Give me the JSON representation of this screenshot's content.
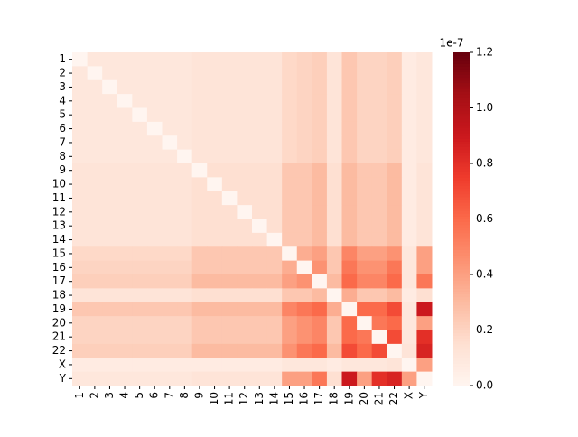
{
  "chart_data": {
    "type": "heatmap",
    "categories": [
      "1",
      "2",
      "3",
      "4",
      "5",
      "6",
      "7",
      "8",
      "9",
      "10",
      "11",
      "12",
      "13",
      "14",
      "15",
      "16",
      "17",
      "18",
      "19",
      "20",
      "21",
      "22",
      "X",
      "Y"
    ],
    "values": [
      [
        0,
        0.1,
        0.1,
        0.1,
        0.1,
        0.1,
        0.1,
        0.1,
        0.12,
        0.12,
        0.12,
        0.12,
        0.12,
        0.12,
        0.18,
        0.2,
        0.22,
        0.12,
        0.25,
        0.2,
        0.2,
        0.22,
        0.07,
        0.1
      ],
      [
        0.1,
        0,
        0.1,
        0.1,
        0.1,
        0.1,
        0.1,
        0.1,
        0.12,
        0.12,
        0.12,
        0.12,
        0.12,
        0.12,
        0.18,
        0.2,
        0.22,
        0.12,
        0.25,
        0.2,
        0.2,
        0.22,
        0.07,
        0.1
      ],
      [
        0.1,
        0.1,
        0,
        0.1,
        0.1,
        0.1,
        0.1,
        0.1,
        0.12,
        0.12,
        0.12,
        0.12,
        0.12,
        0.12,
        0.18,
        0.2,
        0.22,
        0.12,
        0.25,
        0.2,
        0.2,
        0.22,
        0.07,
        0.1
      ],
      [
        0.1,
        0.1,
        0.1,
        0,
        0.1,
        0.1,
        0.1,
        0.1,
        0.12,
        0.12,
        0.12,
        0.12,
        0.12,
        0.12,
        0.18,
        0.2,
        0.22,
        0.12,
        0.25,
        0.2,
        0.2,
        0.22,
        0.07,
        0.1
      ],
      [
        0.1,
        0.1,
        0.1,
        0.1,
        0,
        0.1,
        0.1,
        0.1,
        0.12,
        0.12,
        0.12,
        0.12,
        0.12,
        0.12,
        0.18,
        0.2,
        0.22,
        0.12,
        0.25,
        0.2,
        0.2,
        0.22,
        0.07,
        0.1
      ],
      [
        0.1,
        0.1,
        0.1,
        0.1,
        0.1,
        0,
        0.1,
        0.1,
        0.12,
        0.12,
        0.12,
        0.12,
        0.12,
        0.12,
        0.18,
        0.2,
        0.22,
        0.12,
        0.25,
        0.2,
        0.2,
        0.22,
        0.07,
        0.1
      ],
      [
        0.1,
        0.1,
        0.1,
        0.1,
        0.1,
        0.1,
        0,
        0.1,
        0.12,
        0.12,
        0.12,
        0.12,
        0.12,
        0.12,
        0.18,
        0.2,
        0.22,
        0.12,
        0.25,
        0.2,
        0.2,
        0.22,
        0.07,
        0.1
      ],
      [
        0.1,
        0.1,
        0.1,
        0.1,
        0.1,
        0.1,
        0.1,
        0,
        0.12,
        0.12,
        0.12,
        0.12,
        0.12,
        0.12,
        0.18,
        0.2,
        0.22,
        0.12,
        0.25,
        0.2,
        0.2,
        0.22,
        0.07,
        0.1
      ],
      [
        0.12,
        0.12,
        0.12,
        0.12,
        0.12,
        0.12,
        0.12,
        0.12,
        0,
        0.15,
        0.15,
        0.15,
        0.15,
        0.15,
        0.25,
        0.25,
        0.3,
        0.15,
        0.3,
        0.25,
        0.25,
        0.3,
        0.07,
        0.12
      ],
      [
        0.12,
        0.12,
        0.12,
        0.12,
        0.12,
        0.12,
        0.12,
        0.12,
        0.15,
        0,
        0.15,
        0.15,
        0.15,
        0.15,
        0.25,
        0.25,
        0.3,
        0.15,
        0.3,
        0.25,
        0.25,
        0.3,
        0.07,
        0.12
      ],
      [
        0.12,
        0.12,
        0.12,
        0.12,
        0.12,
        0.12,
        0.12,
        0.12,
        0.15,
        0.15,
        0,
        0.15,
        0.15,
        0.15,
        0.25,
        0.25,
        0.3,
        0.15,
        0.3,
        0.25,
        0.25,
        0.3,
        0.07,
        0.12
      ],
      [
        0.12,
        0.12,
        0.12,
        0.12,
        0.12,
        0.12,
        0.12,
        0.12,
        0.15,
        0.15,
        0.15,
        0,
        0.15,
        0.15,
        0.25,
        0.25,
        0.3,
        0.15,
        0.3,
        0.25,
        0.25,
        0.3,
        0.07,
        0.12
      ],
      [
        0.12,
        0.12,
        0.12,
        0.12,
        0.12,
        0.12,
        0.12,
        0.12,
        0.15,
        0.15,
        0.15,
        0.15,
        0,
        0.15,
        0.25,
        0.25,
        0.3,
        0.15,
        0.3,
        0.25,
        0.25,
        0.3,
        0.07,
        0.12
      ],
      [
        0.12,
        0.12,
        0.12,
        0.12,
        0.12,
        0.12,
        0.12,
        0.12,
        0.15,
        0.15,
        0.15,
        0.15,
        0.15,
        0,
        0.25,
        0.25,
        0.3,
        0.15,
        0.3,
        0.25,
        0.25,
        0.3,
        0.07,
        0.12
      ],
      [
        0.18,
        0.18,
        0.18,
        0.18,
        0.18,
        0.18,
        0.18,
        0.18,
        0.25,
        0.25,
        0.25,
        0.25,
        0.25,
        0.25,
        0,
        0.35,
        0.4,
        0.25,
        0.5,
        0.4,
        0.4,
        0.45,
        0.1,
        0.4
      ],
      [
        0.2,
        0.2,
        0.2,
        0.2,
        0.2,
        0.2,
        0.2,
        0.2,
        0.25,
        0.25,
        0.25,
        0.25,
        0.25,
        0.25,
        0.35,
        0,
        0.45,
        0.25,
        0.55,
        0.45,
        0.45,
        0.55,
        0.1,
        0.4
      ],
      [
        0.22,
        0.22,
        0.22,
        0.22,
        0.22,
        0.22,
        0.22,
        0.22,
        0.3,
        0.3,
        0.3,
        0.3,
        0.3,
        0.3,
        0.4,
        0.45,
        0,
        0.3,
        0.6,
        0.5,
        0.5,
        0.6,
        0.1,
        0.55
      ],
      [
        0.12,
        0.12,
        0.12,
        0.12,
        0.12,
        0.12,
        0.12,
        0.12,
        0.15,
        0.15,
        0.15,
        0.15,
        0.15,
        0.15,
        0.25,
        0.25,
        0.3,
        0,
        0.35,
        0.25,
        0.25,
        0.3,
        0.07,
        0.15
      ],
      [
        0.25,
        0.25,
        0.25,
        0.25,
        0.25,
        0.25,
        0.25,
        0.25,
        0.3,
        0.3,
        0.3,
        0.3,
        0.3,
        0.3,
        0.5,
        0.55,
        0.6,
        0.35,
        0,
        0.6,
        0.6,
        0.7,
        0.1,
        0.9
      ],
      [
        0.2,
        0.2,
        0.2,
        0.2,
        0.2,
        0.2,
        0.2,
        0.2,
        0.25,
        0.25,
        0.25,
        0.25,
        0.25,
        0.25,
        0.4,
        0.45,
        0.5,
        0.25,
        0.6,
        0,
        0.55,
        0.6,
        0.1,
        0.4
      ],
      [
        0.2,
        0.2,
        0.2,
        0.2,
        0.2,
        0.2,
        0.2,
        0.2,
        0.25,
        0.25,
        0.25,
        0.25,
        0.25,
        0.25,
        0.4,
        0.45,
        0.5,
        0.25,
        0.6,
        0.55,
        0,
        0.7,
        0.1,
        0.8
      ],
      [
        0.22,
        0.22,
        0.22,
        0.22,
        0.22,
        0.22,
        0.22,
        0.22,
        0.3,
        0.3,
        0.3,
        0.3,
        0.3,
        0.3,
        0.45,
        0.55,
        0.6,
        0.3,
        0.7,
        0.6,
        0.7,
        0,
        0.12,
        0.85
      ],
      [
        0.07,
        0.07,
        0.07,
        0.07,
        0.07,
        0.07,
        0.07,
        0.07,
        0.07,
        0.07,
        0.07,
        0.07,
        0.07,
        0.07,
        0.1,
        0.1,
        0.1,
        0.07,
        0.1,
        0.1,
        0.1,
        0.12,
        0,
        0.4
      ],
      [
        0.1,
        0.1,
        0.1,
        0.1,
        0.1,
        0.1,
        0.1,
        0.1,
        0.12,
        0.12,
        0.12,
        0.12,
        0.12,
        0.12,
        0.4,
        0.4,
        0.55,
        0.15,
        0.9,
        0.4,
        0.8,
        0.85,
        0.4,
        0
      ]
    ],
    "colormap": "Reds",
    "clim": [
      0,
      1.2
    ],
    "cticks": [
      {
        "value": 0,
        "label": "0.0"
      },
      {
        "value": 0.2,
        "label": "0.2"
      },
      {
        "value": 0.4,
        "label": "0.4"
      },
      {
        "value": 0.6,
        "label": "0.6"
      },
      {
        "value": 0.8,
        "label": "0.8"
      },
      {
        "value": 1.0,
        "label": "1.0"
      },
      {
        "value": 1.2,
        "label": "1.2"
      }
    ],
    "offset_label": "1e-7"
  }
}
